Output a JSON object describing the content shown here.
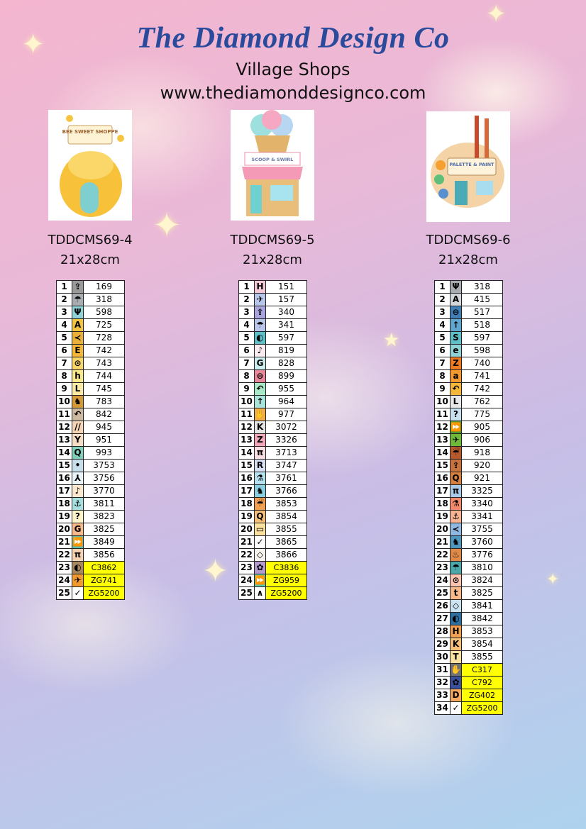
{
  "header": {
    "brand": "The Diamond Design Co",
    "collection": "Village Shops",
    "website": "www.thediamonddesignco.com"
  },
  "products": [
    {
      "code": "TDDCMS69-4",
      "size": "21x28cm",
      "sign": "BEE SWEET SHOPPE",
      "rows": [
        [
          "1",
          "⇪",
          "169",
          "#9a9a9a",
          false
        ],
        [
          "2",
          "☂",
          "318",
          "#a9acb0",
          false
        ],
        [
          "3",
          "Ψ",
          "598",
          "#8fd3d6",
          false
        ],
        [
          "4",
          "A",
          "725",
          "#f2c440",
          false
        ],
        [
          "5",
          "≺",
          "728",
          "#e8b03a",
          false
        ],
        [
          "6",
          "E",
          "742",
          "#f5b73a",
          false
        ],
        [
          "7",
          "⊙",
          "743",
          "#f8d66a",
          false
        ],
        [
          "8",
          "h",
          "744",
          "#fae98c",
          false
        ],
        [
          "9",
          "L",
          "745",
          "#fbeaa6",
          false
        ],
        [
          "10",
          "♞",
          "783",
          "#d59a38",
          false
        ],
        [
          "11",
          "↶",
          "842",
          "#cdb9a0",
          false
        ],
        [
          "12",
          "//",
          "945",
          "#f5d3b5",
          false
        ],
        [
          "13",
          "Y",
          "951",
          "#f6dcc4",
          false
        ],
        [
          "14",
          "Q",
          "993",
          "#7fcfba",
          false
        ],
        [
          "15",
          "•",
          "3753",
          "#c7dfea",
          false
        ],
        [
          "16",
          "⅄",
          "3756",
          "#e8f4f8",
          false
        ],
        [
          "17",
          "♪",
          "3770",
          "#fbe8cf",
          false
        ],
        [
          "18",
          "⚓",
          "3811",
          "#a8dfe0",
          false
        ],
        [
          "19",
          "?",
          "3823",
          "#fdf3c8",
          false
        ],
        [
          "20",
          "G",
          "3825",
          "#f7b88a",
          false
        ],
        [
          "21",
          "⏩",
          "3849",
          "#5fbfae",
          false
        ],
        [
          "22",
          "π",
          "3856",
          "#f8d3b3",
          false
        ],
        [
          "23",
          "◐",
          "C3862",
          "#a8895f",
          true
        ],
        [
          "24",
          "✈",
          "ZG741",
          "#f09a30",
          true
        ],
        [
          "25",
          "✓",
          "ZG5200",
          "#ffffff",
          true
        ]
      ]
    },
    {
      "code": "TDDCMS69-5",
      "size": "21x28cm",
      "sign": "SCOOP & SWIRL",
      "rows": [
        [
          "1",
          "H",
          "151",
          "#f2c9d4",
          false
        ],
        [
          "2",
          "✈",
          "157",
          "#b8c6ea",
          false
        ],
        [
          "3",
          "⇪",
          "340",
          "#a8a4dc",
          false
        ],
        [
          "4",
          "☂",
          "341",
          "#b8c6ea",
          false
        ],
        [
          "5",
          "◐",
          "597",
          "#5fbfc6",
          false
        ],
        [
          "6",
          "♪",
          "819",
          "#fbecef",
          false
        ],
        [
          "7",
          "G",
          "828",
          "#cdeef0",
          false
        ],
        [
          "8",
          "⊖",
          "899",
          "#e8889a",
          false
        ],
        [
          "9",
          "↶",
          "955",
          "#a9e8c6",
          false
        ],
        [
          "10",
          "↑",
          "964",
          "#a8e4da",
          false
        ],
        [
          "11",
          "✋",
          "977",
          "#f0b050",
          false
        ],
        [
          "12",
          "K",
          "3072",
          "#e3e6e2",
          false
        ],
        [
          "13",
          "Z",
          "3326",
          "#f1a7b7",
          false
        ],
        [
          "14",
          "π",
          "3713",
          "#fbe0e3",
          false
        ],
        [
          "15",
          "R",
          "3747",
          "#d8e0f4",
          false
        ],
        [
          "16",
          "⚗",
          "3761",
          "#b5e2ee",
          false
        ],
        [
          "17",
          "♞",
          "3766",
          "#89cfe0",
          false
        ],
        [
          "18",
          "☔",
          "3853",
          "#f0a050",
          false
        ],
        [
          "19",
          "Q",
          "3854",
          "#f6bf7a",
          false
        ],
        [
          "20",
          "▭",
          "3855",
          "#fae1a0",
          false
        ],
        [
          "21",
          "✓",
          "3865",
          "#ffffff",
          false
        ],
        [
          "22",
          "◇",
          "3866",
          "#f7f4ee",
          false
        ],
        [
          "23",
          "✿",
          "C3836",
          "#b59ad0",
          true
        ],
        [
          "24",
          "⏩",
          "ZG959",
          "#5fcfae",
          true
        ],
        [
          "25",
          "∧",
          "ZG5200",
          "#ffffff",
          true
        ]
      ]
    },
    {
      "code": "TDDCMS69-6",
      "size": "21x28cm",
      "sign": "PALETTE & PAINT",
      "rows": [
        [
          "1",
          "Ψ",
          "318",
          "#a9acb0",
          false
        ],
        [
          "2",
          "A",
          "415",
          "#d3d6da",
          false
        ],
        [
          "3",
          "⊖",
          "517",
          "#3f7fb6",
          false
        ],
        [
          "4",
          "↑",
          "518",
          "#5fa7cf",
          false
        ],
        [
          "5",
          "S",
          "597",
          "#5fbfc6",
          false
        ],
        [
          "6",
          "e",
          "598",
          "#8fd3d6",
          false
        ],
        [
          "7",
          "Z",
          "740",
          "#f07a20",
          false
        ],
        [
          "8",
          "a",
          "741",
          "#f59a30",
          false
        ],
        [
          "9",
          "↶",
          "742",
          "#f5b73a",
          false
        ],
        [
          "10",
          "L",
          "762",
          "#e6e8ea",
          false
        ],
        [
          "11",
          "?",
          "775",
          "#c9e2f0",
          false
        ],
        [
          "12",
          "⏩",
          "905",
          "#4f9a2e",
          false
        ],
        [
          "13",
          "✈",
          "906",
          "#6fb83a",
          false
        ],
        [
          "14",
          "☔",
          "918",
          "#b65a2e",
          false
        ],
        [
          "15",
          "⇪",
          "920",
          "#c8723e",
          false
        ],
        [
          "16",
          "Q",
          "921",
          "#d5803e",
          false
        ],
        [
          "17",
          "π",
          "3325",
          "#a9cbe8",
          false
        ],
        [
          "18",
          "⚗",
          "3340",
          "#f38a6a",
          false
        ],
        [
          "19",
          "⚓",
          "3341",
          "#f7b392",
          false
        ],
        [
          "20",
          "≺",
          "3755",
          "#90b8e0",
          false
        ],
        [
          "21",
          "♞",
          "3760",
          "#4f96bd",
          false
        ],
        [
          "22",
          "♨",
          "3776",
          "#e08a4a",
          false
        ],
        [
          "23",
          "☂",
          "3810",
          "#4aa8a8",
          false
        ],
        [
          "24",
          "⊙",
          "3824",
          "#fbc4b0",
          false
        ],
        [
          "25",
          "t",
          "3825",
          "#f7b88a",
          false
        ],
        [
          "26",
          "◇",
          "3841",
          "#cbe2f0",
          false
        ],
        [
          "27",
          "◐",
          "3842",
          "#2f6fa0",
          false
        ],
        [
          "28",
          "H",
          "3853",
          "#f0a050",
          false
        ],
        [
          "29",
          "K",
          "3854",
          "#f6bf7a",
          false
        ],
        [
          "30",
          "T",
          "3855",
          "#fae1a0",
          false
        ],
        [
          "31",
          "✋",
          "C317",
          "#6f7276",
          true
        ],
        [
          "32",
          "✿",
          "C792",
          "#3c4f9a",
          true
        ],
        [
          "33",
          "D",
          "ZG402",
          "#f5a860",
          true
        ],
        [
          "34",
          "✓",
          "ZG5200",
          "#ffffff",
          true
        ]
      ]
    }
  ],
  "colors": {
    "brand": "#2a4b9b",
    "highlight": "#ffff00"
  }
}
